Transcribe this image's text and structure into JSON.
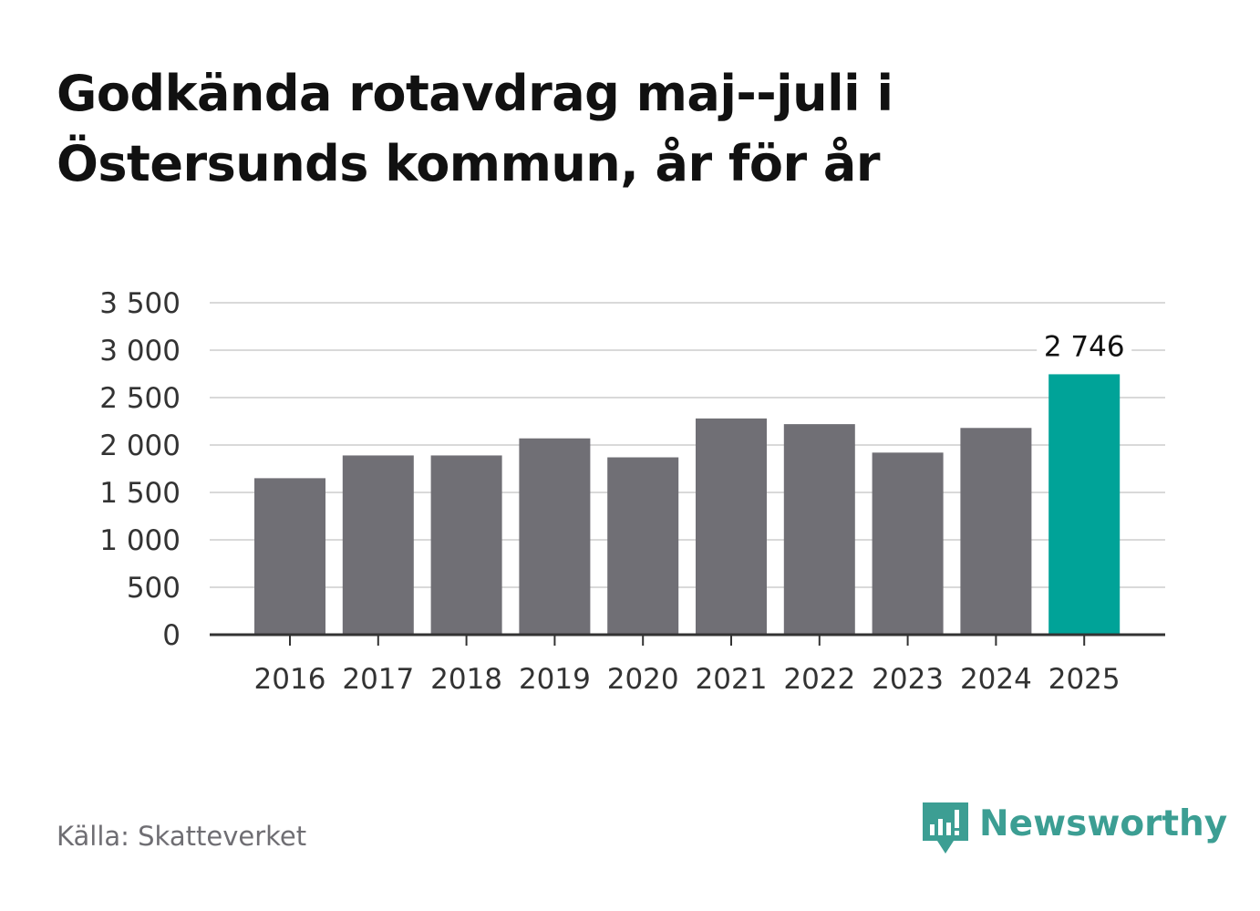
{
  "title_line1": "Godkända rotavdrag maj--juli i",
  "title_line2": "Östersunds kommun, år för år",
  "source": "Källa: Skatteverket",
  "brand": "Newsworthy",
  "colors": {
    "bar": "#706f75",
    "highlight": "#00a398",
    "grid": "#d9d9d9",
    "axis": "#333333",
    "brand": "#3c9e93"
  },
  "chart_data": {
    "type": "bar",
    "categories": [
      "2016",
      "2017",
      "2018",
      "2019",
      "2020",
      "2021",
      "2022",
      "2023",
      "2024",
      "2025"
    ],
    "values": [
      1650,
      1890,
      1890,
      2070,
      1870,
      2280,
      2220,
      1920,
      2180,
      2746
    ],
    "highlight_index": 9,
    "data_labels": [
      {
        "index": 9,
        "text": "2 746"
      }
    ],
    "ylim": [
      0,
      3500
    ],
    "yticks": [
      0,
      500,
      1000,
      1500,
      2000,
      2500,
      3000,
      3500
    ],
    "ytick_labels": [
      "0",
      "500",
      "1 000",
      "1 500",
      "2 000",
      "2 500",
      "3 000",
      "3 500"
    ],
    "grid": true,
    "xlabel": "",
    "ylabel": ""
  }
}
